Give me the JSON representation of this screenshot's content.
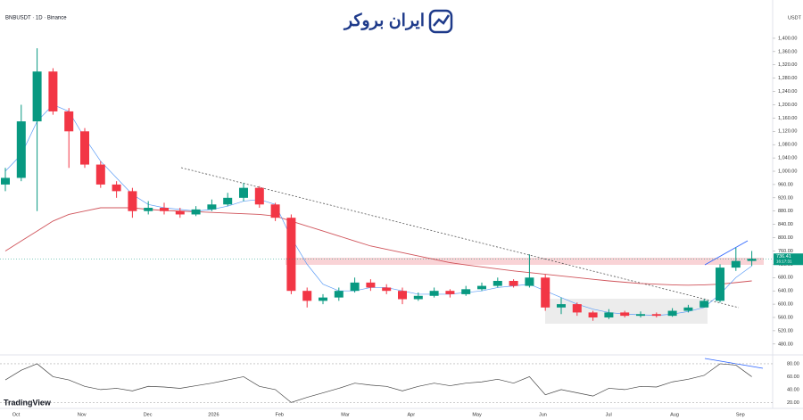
{
  "chart_data": {
    "type": "candlestick",
    "title": "BNBUSDT · 1D · Binance",
    "logo": "ایران بروکر",
    "currency": "USDT",
    "last_price_label": "736.41",
    "countdown": "16:17:31",
    "brand": "TradingView",
    "up_color": "#089981",
    "down_color": "#f23645",
    "x_labels": [
      "Oct",
      "Nov",
      "Dec",
      "2026",
      "Feb",
      "Mar",
      "Apr",
      "May",
      "Jun",
      "Jul",
      "Aug",
      "Sep"
    ],
    "open": [
      960,
      980,
      1150,
      1300,
      1180,
      1120,
      1020,
      960,
      940,
      880,
      890,
      880,
      870,
      885,
      900,
      920,
      950,
      900,
      860,
      640,
      610,
      620,
      640,
      665,
      650,
      640,
      615,
      625,
      640,
      630,
      645,
      655,
      670,
      655,
      680,
      590,
      600,
      575,
      560,
      575,
      565,
      570,
      565,
      580,
      590,
      610,
      710,
      730
    ],
    "high": [
      1010,
      1200,
      1370,
      1310,
      1190,
      1130,
      1030,
      970,
      950,
      910,
      905,
      890,
      895,
      915,
      935,
      965,
      955,
      905,
      870,
      650,
      630,
      650,
      680,
      675,
      660,
      650,
      635,
      650,
      645,
      655,
      665,
      680,
      675,
      750,
      690,
      620,
      605,
      580,
      585,
      580,
      578,
      575,
      588,
      598,
      615,
      720,
      770,
      760
    ],
    "low": [
      940,
      970,
      880,
      1170,
      1010,
      1010,
      950,
      920,
      860,
      870,
      870,
      860,
      865,
      880,
      895,
      910,
      890,
      850,
      630,
      590,
      600,
      610,
      635,
      640,
      630,
      600,
      610,
      620,
      620,
      625,
      640,
      650,
      650,
      650,
      580,
      570,
      565,
      550,
      555,
      560,
      560,
      560,
      562,
      575,
      590,
      605,
      700,
      715
    ],
    "close": [
      980,
      1150,
      1300,
      1180,
      1120,
      1020,
      960,
      940,
      880,
      890,
      880,
      870,
      885,
      900,
      920,
      950,
      900,
      860,
      640,
      610,
      620,
      640,
      665,
      650,
      640,
      615,
      625,
      640,
      630,
      645,
      655,
      670,
      655,
      680,
      590,
      600,
      575,
      560,
      575,
      565,
      570,
      565,
      580,
      590,
      610,
      710,
      730,
      736.41
    ],
    "ma_fast": {
      "color": "#5b9cf6",
      "values": [
        1000,
        1050,
        1150,
        1200,
        1180,
        1100,
        1030,
        980,
        930,
        900,
        890,
        885,
        880,
        885,
        895,
        910,
        915,
        900,
        800,
        720,
        660,
        640,
        640,
        650,
        650,
        640,
        630,
        630,
        630,
        635,
        640,
        650,
        655,
        660,
        640,
        620,
        600,
        585,
        575,
        570,
        568,
        566,
        570,
        578,
        590,
        630,
        680,
        715
      ]
    },
    "ma_slow": {
      "color": "#d0545b",
      "values": [
        760,
        790,
        820,
        850,
        870,
        880,
        890,
        890,
        890,
        885,
        882,
        880,
        878,
        876,
        874,
        872,
        870,
        865,
        850,
        835,
        820,
        805,
        790,
        775,
        765,
        755,
        745,
        735,
        725,
        718,
        712,
        706,
        700,
        695,
        690,
        685,
        680,
        675,
        670,
        666,
        662,
        660,
        658,
        657,
        658,
        660,
        665,
        670
      ]
    },
    "ylim": [
      450,
      1483
    ],
    "yticks": [
      {
        "value": 1400,
        "label": "1,400.00"
      },
      {
        "value": 1360,
        "label": "1,360.00"
      },
      {
        "value": 1320,
        "label": "1,320.00"
      },
      {
        "value": 1280,
        "label": "1,280.00"
      },
      {
        "value": 1240,
        "label": "1,240.00"
      },
      {
        "value": 1200,
        "label": "1,200.00"
      },
      {
        "value": 1160,
        "label": "1,160.00"
      },
      {
        "value": 1120,
        "label": "1,120.00"
      },
      {
        "value": 1080,
        "label": "1,080.00"
      },
      {
        "value": 1040,
        "label": "1,040.00"
      },
      {
        "value": 1000,
        "label": "1,000.00"
      },
      {
        "value": 960,
        "label": "960.00"
      },
      {
        "value": 920,
        "label": "920.00"
      },
      {
        "value": 880,
        "label": "880.00"
      },
      {
        "value": 840,
        "label": "840.00"
      },
      {
        "value": 800,
        "label": "800.00"
      },
      {
        "value": 760,
        "label": "760.00"
      },
      {
        "value": 720,
        "label": "720.00"
      },
      {
        "value": 680,
        "label": "680.00"
      },
      {
        "value": 640,
        "label": "640.00"
      },
      {
        "value": 600,
        "label": "600.00"
      },
      {
        "value": 560,
        "label": "560.00"
      },
      {
        "value": 520,
        "label": "520.00"
      },
      {
        "value": 480,
        "label": "480.00"
      }
    ],
    "rsi": {
      "color": "#444",
      "ylim": [
        15,
        91
      ],
      "yticks": [
        {
          "value": 80,
          "label": "80.00"
        },
        {
          "value": 60,
          "label": "60.00"
        },
        {
          "value": 40,
          "label": "40.00"
        },
        {
          "value": 20,
          "label": "20.00"
        }
      ],
      "values": [
        55,
        70,
        80,
        60,
        55,
        45,
        40,
        42,
        38,
        45,
        44,
        42,
        46,
        50,
        55,
        60,
        45,
        40,
        20,
        28,
        35,
        42,
        50,
        47,
        45,
        38,
        45,
        50,
        46,
        50,
        52,
        56,
        50,
        60,
        32,
        40,
        35,
        30,
        42,
        40,
        45,
        44,
        52,
        56,
        62,
        80,
        78,
        60
      ]
    }
  }
}
